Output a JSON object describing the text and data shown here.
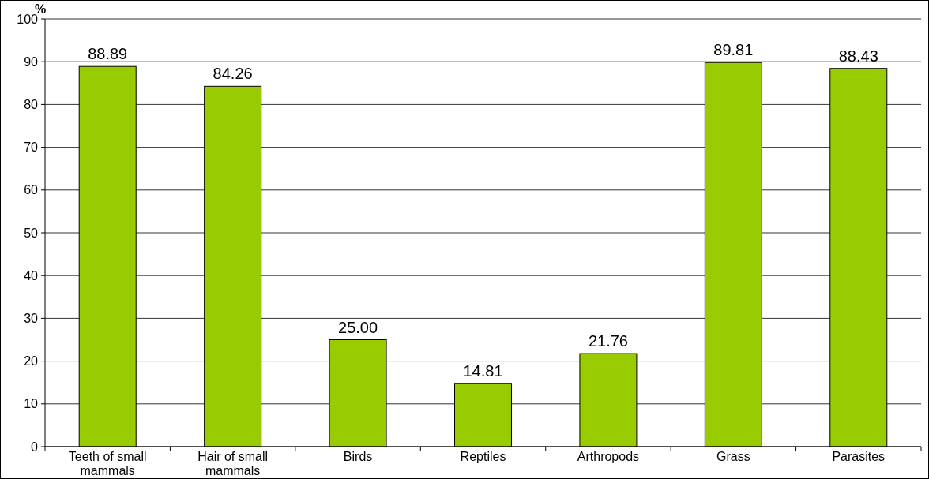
{
  "chart_data": {
    "type": "bar",
    "ylabel": "%",
    "categories": [
      "Teeth of small mammals",
      "Hair of small mammals",
      "Birds",
      "Reptiles",
      "Arthropods",
      "Grass",
      "Parasites"
    ],
    "values": [
      88.89,
      84.26,
      25.0,
      14.81,
      21.76,
      89.81,
      88.43
    ],
    "value_labels": [
      "88.89",
      "84.26",
      "25.00",
      "14.81",
      "21.76",
      "89.81",
      "88.43"
    ],
    "color": "#99cc00",
    "ylim": [
      0,
      100
    ],
    "yticks": [
      0,
      10,
      20,
      30,
      40,
      50,
      60,
      70,
      80,
      90,
      100
    ],
    "grid": "y"
  }
}
